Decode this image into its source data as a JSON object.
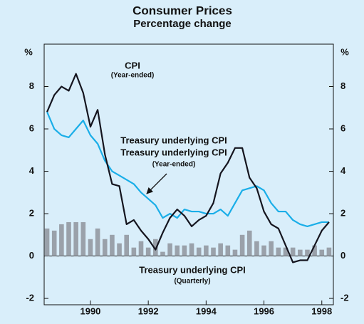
{
  "chart_data": {
    "type": "line",
    "title": "Consumer Prices",
    "subtitle": "Percentage change",
    "y_label": "%",
    "y2_label": "%",
    "annotations": [
      {
        "text": "CPI",
        "note": "(Year-ended)"
      },
      {
        "text": "Treasury underlying CPI",
        "note": "(Year-ended)"
      },
      {
        "text": "Treasury underlying CPI",
        "note": "(Quarterly)"
      }
    ],
    "x": [
      1988.5,
      1988.75,
      1989,
      1989.25,
      1989.5,
      1989.75,
      1990,
      1990.25,
      1990.5,
      1990.75,
      1991,
      1991.25,
      1991.5,
      1991.75,
      1992,
      1992.25,
      1992.5,
      1992.75,
      1993,
      1993.25,
      1993.5,
      1993.75,
      1994,
      1994.25,
      1994.5,
      1994.75,
      1995,
      1995.25,
      1995.5,
      1995.75,
      1996,
      1996.25,
      1996.5,
      1996.75,
      1997,
      1997.25,
      1997.5,
      1997.75,
      1998,
      1998.25
    ],
    "series": [
      {
        "name": "Treasury underlying CPI (Quarterly)",
        "type": "bar",
        "color": "#9aa1aa",
        "values": [
          1.3,
          1.2,
          1.5,
          1.6,
          1.6,
          1.6,
          0.8,
          1.3,
          0.8,
          1.0,
          0.6,
          1.0,
          0.4,
          0.7,
          0.4,
          0.8,
          0.2,
          0.6,
          0.5,
          0.5,
          0.6,
          0.4,
          0.5,
          0.4,
          0.6,
          0.5,
          0.3,
          1.0,
          1.2,
          0.7,
          0.5,
          0.7,
          0.4,
          0.4,
          0.4,
          0.3,
          0.3,
          0.5,
          0.3,
          0.4
        ]
      },
      {
        "name": "Treasury underlying CPI (Year-ended)",
        "type": "line",
        "color": "#1aaee8",
        "values": [
          6.8,
          6.0,
          5.7,
          5.6,
          6.0,
          6.4,
          5.7,
          5.3,
          4.5,
          4.0,
          3.8,
          3.6,
          3.4,
          3.0,
          2.7,
          2.4,
          1.8,
          2.0,
          1.8,
          2.2,
          2.1,
          2.1,
          2.0,
          2.0,
          2.2,
          1.9,
          2.5,
          3.1,
          3.2,
          3.3,
          3.1,
          2.5,
          2.1,
          2.1,
          1.7,
          1.5,
          1.4,
          1.5,
          1.6,
          1.6
        ]
      },
      {
        "name": "CPI (Year-ended)",
        "type": "line",
        "color": "#15151f",
        "values": [
          6.8,
          7.6,
          8.0,
          7.8,
          8.6,
          7.7,
          6.1,
          6.9,
          4.8,
          3.4,
          3.3,
          1.5,
          1.7,
          1.2,
          0.8,
          0.3,
          1.1,
          1.8,
          2.2,
          1.9,
          1.4,
          1.7,
          1.9,
          2.5,
          3.9,
          4.4,
          5.1,
          5.1,
          3.7,
          3.2,
          2.1,
          1.5,
          1.3,
          0.5,
          -0.3,
          -0.2,
          -0.2,
          0.5,
          1.2,
          1.6
        ]
      }
    ],
    "xlim": [
      1988.4,
      1998.4
    ],
    "xticks": [
      1990,
      1992,
      1994,
      1996,
      1998
    ],
    "ylim": [
      -2.3,
      10
    ],
    "yticks": [
      -2,
      0,
      2,
      4,
      6,
      8
    ],
    "y2lim": [
      -2.3,
      10
    ],
    "y2ticks": [
      -2,
      0,
      2,
      4,
      6,
      8
    ]
  }
}
